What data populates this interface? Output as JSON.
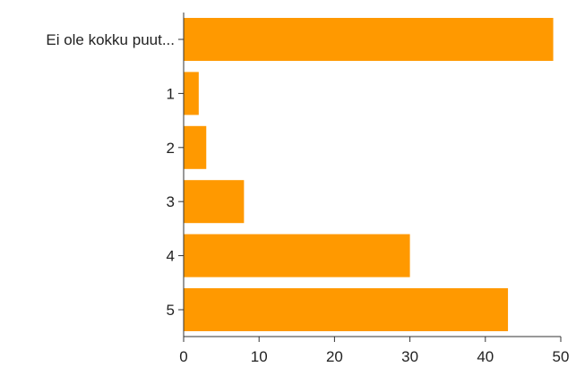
{
  "colors": {
    "bar": "#ff9900",
    "axis": "#333333",
    "text": "#222222",
    "background": "#ffffff"
  },
  "chart_data": {
    "type": "bar",
    "orientation": "horizontal",
    "categories": [
      "Ei ole kokku puut...",
      "1",
      "2",
      "3",
      "4",
      "5"
    ],
    "values": [
      49,
      2,
      3,
      8,
      30,
      43
    ],
    "xlim": [
      0,
      50
    ],
    "x_ticks": [
      0,
      10,
      20,
      30,
      40,
      50
    ],
    "title": "",
    "xlabel": "",
    "ylabel": "",
    "grid": false,
    "legend": "none"
  }
}
